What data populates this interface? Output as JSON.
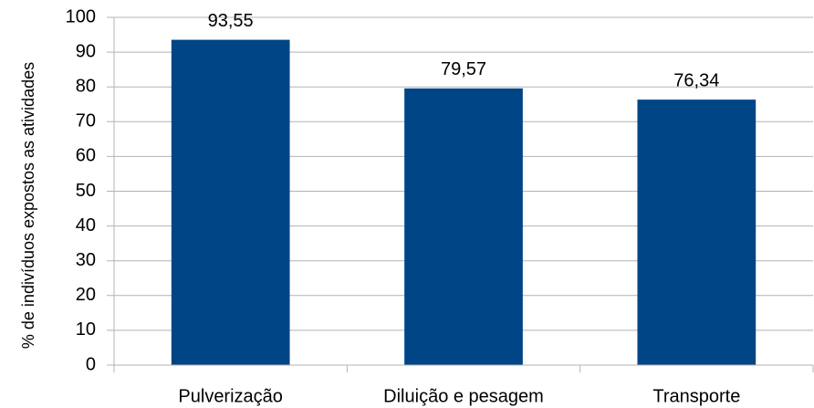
{
  "chart_data": {
    "type": "bar",
    "ylabel": "% de indivíduos expostos as atividades",
    "categories": [
      "Pulverização",
      "Diluição e pesagem",
      "Transporte"
    ],
    "values": [
      93.55,
      79.57,
      76.34
    ],
    "value_labels": [
      "93,55",
      "79,57",
      "76,34"
    ],
    "color": "#004586",
    "ylim": [
      0,
      100
    ],
    "yticks": [
      0,
      10,
      20,
      30,
      40,
      50,
      60,
      70,
      80,
      90,
      100
    ],
    "grid": true
  }
}
